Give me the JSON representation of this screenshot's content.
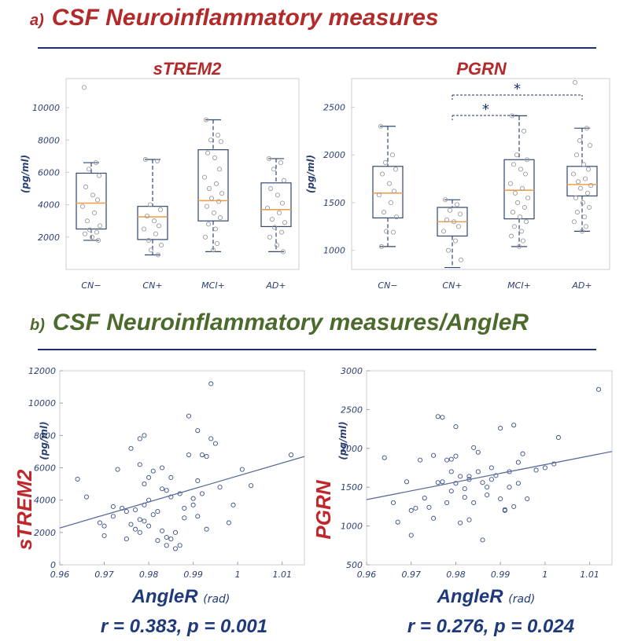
{
  "figure": {
    "section_a": {
      "label": "a)",
      "title": "CSF Neuroinflammatory measures",
      "color": "#b22a2a"
    },
    "section_b": {
      "label": "b)",
      "title": "CSF Neuroinflammatory measures/AngleR",
      "color": "#4b6a2c"
    },
    "accent": "#1f2f6e"
  },
  "chart_data": [
    {
      "id": "box_strem2",
      "type": "box",
      "title": "sTREM2",
      "ylabel": "(pg/ml)",
      "categories": [
        "CN−",
        "CN+",
        "MCI+",
        "AD+"
      ],
      "ylim": [
        0,
        11800
      ],
      "yticks": [
        2000,
        4000,
        6000,
        8000,
        10000
      ],
      "boxes": [
        {
          "whisker_low": 1800,
          "q1": 2500,
          "median": 4100,
          "q3": 5950,
          "whisker_high": 6600
        },
        {
          "whisker_low": 900,
          "q1": 1850,
          "median": 3250,
          "q3": 3900,
          "whisker_high": 6800
        },
        {
          "whisker_low": 1100,
          "q1": 3000,
          "median": 4250,
          "q3": 7400,
          "whisker_high": 9250
        },
        {
          "whisker_low": 1100,
          "q1": 2650,
          "median": 3700,
          "q3": 5350,
          "whisker_high": 6850
        }
      ],
      "points": [
        [
          11250,
          6600,
          6200,
          5800,
          5100,
          4600,
          4300,
          3900,
          3500,
          3000,
          2700,
          2450,
          2300,
          2200,
          2000,
          1800
        ],
        [
          6800,
          6700,
          4000,
          3700,
          3300,
          3000,
          2700,
          2500,
          2200,
          1800,
          1500,
          1200,
          900
        ],
        [
          9250,
          8300,
          8000,
          7900,
          7200,
          6900,
          6200,
          5700,
          5300,
          5000,
          4700,
          4400,
          4200,
          3900,
          3500,
          3200,
          2800,
          2500,
          2000,
          1600,
          1200
        ],
        [
          6850,
          6600,
          6200,
          5500,
          5000,
          4600,
          4100,
          3800,
          3500,
          3100,
          2900,
          2600,
          2300,
          2000,
          1500,
          1100
        ]
      ]
    },
    {
      "id": "box_pgrn",
      "type": "box",
      "title": "PGRN",
      "ylabel": "(pg/ml)",
      "categories": [
        "CN−",
        "CN+",
        "MCI+",
        "AD+"
      ],
      "ylim": [
        800,
        2800
      ],
      "yticks": [
        1000,
        1500,
        2000,
        2500
      ],
      "boxes": [
        {
          "whisker_low": 1040,
          "q1": 1340,
          "median": 1600,
          "q3": 1880,
          "whisker_high": 2300
        },
        {
          "whisker_low": 820,
          "q1": 1150,
          "median": 1300,
          "q3": 1450,
          "whisker_high": 1530
        },
        {
          "whisker_low": 1040,
          "q1": 1330,
          "median": 1630,
          "q3": 1950,
          "whisker_high": 2410
        },
        {
          "whisker_low": 1200,
          "q1": 1570,
          "median": 1690,
          "q3": 1880,
          "whisker_high": 2280
        }
      ],
      "points": [
        [
          2300,
          2000,
          1920,
          1850,
          1800,
          1700,
          1620,
          1580,
          1500,
          1400,
          1350,
          1200,
          1190,
          1040
        ],
        [
          1530,
          1480,
          1420,
          1380,
          1320,
          1300,
          1250,
          1200,
          1100,
          1000,
          900
        ],
        [
          2410,
          2250,
          2000,
          1950,
          1900,
          1850,
          1800,
          1700,
          1650,
          1600,
          1550,
          1500,
          1450,
          1400,
          1350,
          1300,
          1250,
          1200,
          1150,
          1100,
          1040
        ],
        [
          2760,
          2280,
          2150,
          2100,
          2000,
          1900,
          1850,
          1800,
          1750,
          1720,
          1680,
          1650,
          1600,
          1550,
          1500,
          1450,
          1400,
          1350,
          1300,
          1250,
          1200
        ]
      ],
      "significance": [
        {
          "from": 1,
          "to": 2,
          "label": "*"
        },
        {
          "from": 1,
          "to": 3,
          "label": "*"
        }
      ]
    },
    {
      "id": "scatter_strem2",
      "type": "scatter",
      "ylabel": "sTREM2",
      "yunit": "(pg/ml)",
      "xlabel": "AngleR",
      "xunit": "(rad)",
      "xlim": [
        0.96,
        1.015
      ],
      "ylim": [
        0,
        12000
      ],
      "xticks": [
        0.96,
        0.97,
        0.98,
        0.99,
        1,
        1.01
      ],
      "xtick_labels": [
        "0.96",
        "0.97",
        "0.98",
        "0.99",
        "1",
        "1.01"
      ],
      "yticks": [
        0,
        2000,
        4000,
        6000,
        8000,
        10000,
        12000
      ],
      "fit": {
        "x": [
          0.96,
          1.015
        ],
        "y": [
          2280,
          6700
        ]
      },
      "stat": "r = 0.383, p = 0.001",
      "x": [
        0.964,
        0.966,
        0.969,
        0.97,
        0.97,
        0.972,
        0.972,
        0.973,
        0.974,
        0.975,
        0.975,
        0.976,
        0.976,
        0.977,
        0.977,
        0.978,
        0.978,
        0.978,
        0.978,
        0.979,
        0.979,
        0.979,
        0.979,
        0.98,
        0.98,
        0.98,
        0.981,
        0.981,
        0.982,
        0.982,
        0.983,
        0.983,
        0.983,
        0.984,
        0.984,
        0.984,
        0.985,
        0.985,
        0.985,
        0.986,
        0.986,
        0.987,
        0.987,
        0.988,
        0.988,
        0.989,
        0.989,
        0.99,
        0.99,
        0.991,
        0.991,
        0.991,
        0.992,
        0.992,
        0.993,
        0.993,
        0.994,
        0.994,
        0.995,
        0.996,
        0.998,
        0.999,
        1.001,
        1.003,
        1.012
      ],
      "y": [
        5300,
        4200,
        2600,
        2400,
        1800,
        3600,
        3000,
        5900,
        3500,
        3300,
        1600,
        7200,
        2500,
        3400,
        2200,
        7800,
        6200,
        2800,
        2000,
        8000,
        5000,
        3700,
        2700,
        5400,
        4000,
        2400,
        3100,
        5800,
        1500,
        3300,
        4700,
        2100,
        6000,
        4600,
        1700,
        1200,
        5400,
        4200,
        1600,
        2000,
        1000,
        4400,
        1200,
        3500,
        2900,
        9200,
        6800,
        4100,
        3700,
        8300,
        5200,
        3000,
        6800,
        4400,
        6700,
        2200,
        7800,
        11200,
        7500,
        4800,
        2600,
        3700,
        5900,
        4900,
        6800
      ]
    },
    {
      "id": "scatter_pgrn",
      "type": "scatter",
      "ylabel": "PGRN",
      "yunit": "(pg/ml)",
      "xlabel": "AngleR",
      "xunit": "(rad)",
      "xlim": [
        0.96,
        1.015
      ],
      "ylim": [
        500,
        3000
      ],
      "xticks": [
        0.96,
        0.97,
        0.98,
        0.99,
        1,
        1.01
      ],
      "xtick_labels": [
        "0.96",
        "0.97",
        "0.98",
        "0.99",
        "1",
        "1.01"
      ],
      "yticks": [
        500,
        1000,
        1500,
        2000,
        2500,
        3000
      ],
      "fit": {
        "x": [
          0.96,
          1.015
        ],
        "y": [
          1340,
          1960
        ]
      },
      "stat": "r = 0.276, p = 0.024",
      "x": [
        0.964,
        0.966,
        0.967,
        0.969,
        0.97,
        0.97,
        0.971,
        0.972,
        0.973,
        0.974,
        0.975,
        0.975,
        0.976,
        0.976,
        0.977,
        0.977,
        0.978,
        0.978,
        0.979,
        0.979,
        0.979,
        0.98,
        0.98,
        0.98,
        0.981,
        0.981,
        0.982,
        0.982,
        0.983,
        0.983,
        0.983,
        0.984,
        0.984,
        0.985,
        0.985,
        0.986,
        0.986,
        0.987,
        0.987,
        0.988,
        0.988,
        0.989,
        0.99,
        0.99,
        0.991,
        0.991,
        0.992,
        0.992,
        0.993,
        0.993,
        0.994,
        0.994,
        0.995,
        0.996,
        0.998,
        1.0,
        1.002,
        1.003,
        1.012
      ],
      "y": [
        1880,
        1300,
        1050,
        1570,
        1200,
        880,
        1230,
        1850,
        1360,
        1240,
        1910,
        1100,
        2410,
        1560,
        2400,
        1570,
        1300,
        1850,
        1860,
        1450,
        1700,
        1900,
        1550,
        2280,
        1640,
        1040,
        1370,
        1480,
        1600,
        1640,
        1080,
        2010,
        1300,
        1950,
        1700,
        820,
        1560,
        1500,
        1400,
        1600,
        1750,
        1650,
        2260,
        1350,
        1210,
        1200,
        1500,
        1700,
        2300,
        1250,
        1550,
        1820,
        1930,
        1350,
        1720,
        1750,
        1800,
        2140,
        2760
      ]
    }
  ]
}
